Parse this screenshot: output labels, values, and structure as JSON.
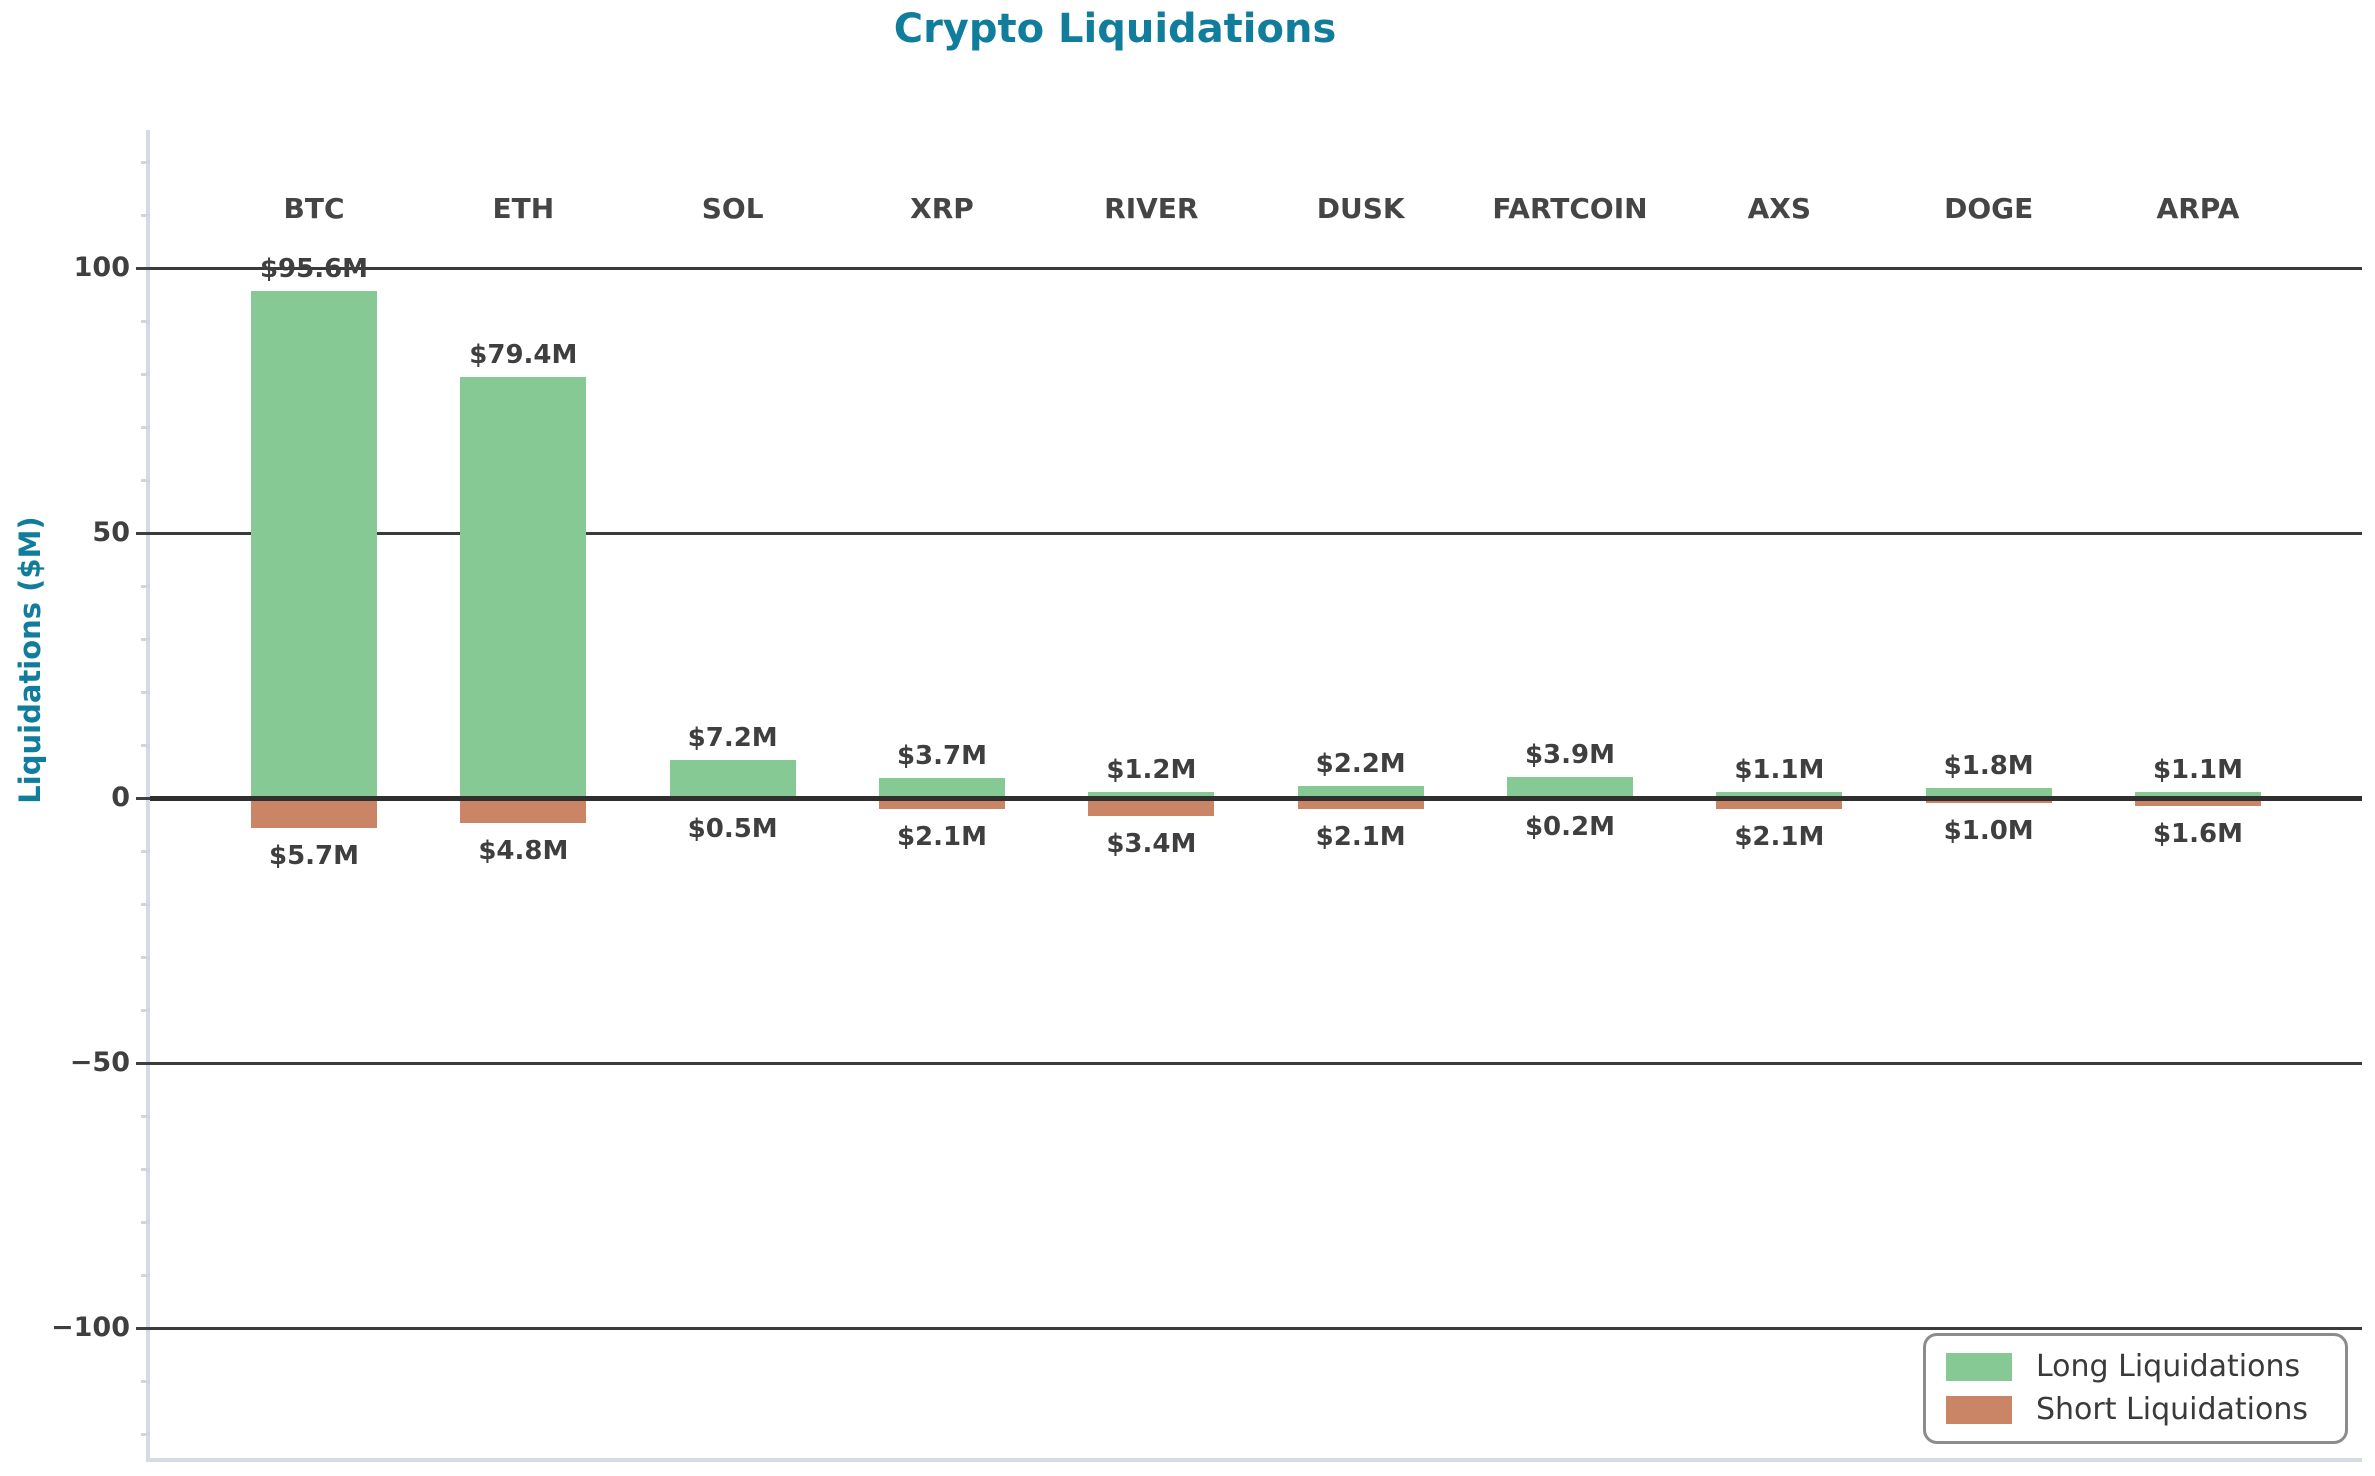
{
  "title": "Crypto Liquidations",
  "ylabel": "Liquidations ($M)",
  "colors": {
    "title": "#117d9d",
    "axis_label": "#117d9d",
    "long": "#87c994",
    "short": "#c98566",
    "grid": "#3a3a3a",
    "zero_line": "#2f2f2f",
    "tick_label": "#3f3f3f",
    "category_label": "#454545",
    "value_label": "#3f3f3f",
    "spine": "#d4dae6",
    "minor_tick": "#cfd6e2",
    "legend_border": "#8c8c8c",
    "legend_text": "#3a3a3a",
    "background": "#ffffff"
  },
  "legend": {
    "position": "lower right",
    "items": [
      {
        "label": "Long Liquidations",
        "color": "#87c994"
      },
      {
        "label": "Short Liquidations",
        "color": "#c98566"
      }
    ]
  },
  "chart_data": {
    "type": "bar",
    "title": "Crypto Liquidations",
    "xlabel": "",
    "ylabel": "Liquidations ($M)",
    "categories": [
      "BTC",
      "ETH",
      "SOL",
      "XRP",
      "RIVER",
      "DUSK",
      "FARTCOIN",
      "AXS",
      "DOGE",
      "ARPA"
    ],
    "series": [
      {
        "name": "Long Liquidations",
        "color": "#87c994",
        "values": [
          95.6,
          79.4,
          7.2,
          3.7,
          1.2,
          2.2,
          3.9,
          1.1,
          1.8,
          1.1
        ],
        "labels": [
          "$95.6M",
          "$79.4M",
          "$7.2M",
          "$3.7M",
          "$1.2M",
          "$2.2M",
          "$3.9M",
          "$1.1M",
          "$1.8M",
          "$1.1M"
        ]
      },
      {
        "name": "Short Liquidations",
        "color": "#c98566",
        "values": [
          -5.7,
          -4.8,
          -0.5,
          -2.1,
          -3.4,
          -2.1,
          -0.2,
          -2.1,
          -1.0,
          -1.6
        ],
        "labels": [
          "$5.7M",
          "$4.8M",
          "$0.5M",
          "$2.1M",
          "$3.4M",
          "$2.1M",
          "$0.2M",
          "$2.1M",
          "$1.0M",
          "$1.6M"
        ]
      }
    ],
    "yticks": [
      100,
      50,
      0,
      -50,
      -100
    ],
    "ytick_labels": [
      "100",
      "50",
      "0",
      "−50",
      "−100"
    ],
    "minor_tick_step": 10,
    "ylim": [
      -125,
      126
    ],
    "grid": true,
    "axis_below": true,
    "legend_position": "lower right"
  }
}
